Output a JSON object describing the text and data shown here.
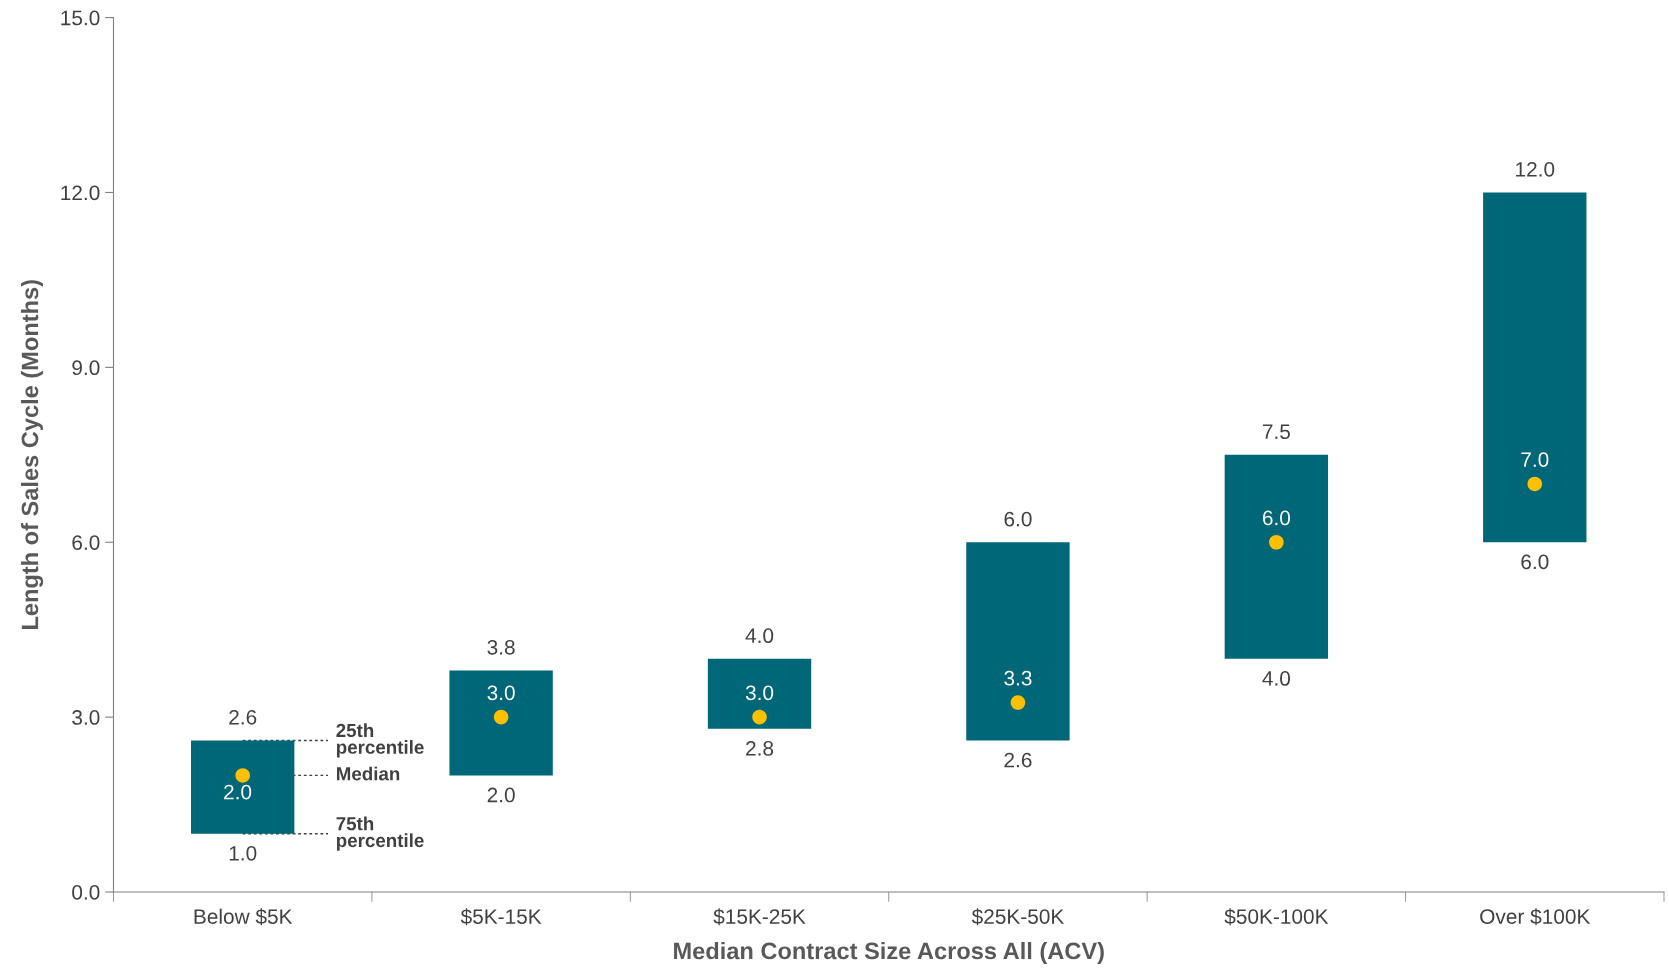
{
  "chart_data": {
    "type": "bar",
    "xlabel": "Median Contract Size Across All (ACV)",
    "ylabel": "Length of Sales Cycle (Months)",
    "categories": [
      "Below $5K",
      "$5K-15K",
      "$15K-25K",
      "$25K-50K",
      "$50K-100K",
      "Over $100K"
    ],
    "series": [
      {
        "color": "#006778",
        "base": [
          1.0,
          2.0,
          2.8,
          2.6,
          4.0,
          6.0
        ],
        "values": [
          1.6,
          1.8,
          1.2,
          3.4,
          3.5,
          6.0
        ]
      },
      {
        "type": "scatter",
        "color": "#ffc000",
        "x": [
          "Below $5K",
          "$5K-15K",
          "$15K-25K",
          "$25K-50K",
          "$50K-100K",
          "Over $100K"
        ],
        "values": [
          2.0,
          3.0,
          3.0,
          3.25,
          6.0,
          7.0
        ],
        "value_labels": [
          "2.0",
          "3.0",
          "3.0",
          "3.3",
          "6.0",
          "7.0"
        ]
      }
    ],
    "marker": "circle",
    "ylim": [
      0,
      15
    ],
    "yticks": [
      {
        "value": 0,
        "label": "0.0"
      },
      {
        "value": 3,
        "label": "3.0"
      },
      {
        "value": 6,
        "label": "6.0"
      },
      {
        "value": 9,
        "label": "9.0"
      },
      {
        "value": 12,
        "label": "12.0"
      },
      {
        "value": 15,
        "label": "15.0"
      }
    ],
    "grid": false,
    "legend": false,
    "annotations": [
      {
        "text": "2.6",
        "x": "Below $5K",
        "y": 2.6
      },
      {
        "text": "3.8",
        "x": "$5K-15K",
        "y": 3.8
      },
      {
        "text": "4.0",
        "x": "$15K-25K",
        "y": 4.0
      },
      {
        "text": "6.0",
        "x": "$25K-50K",
        "y": 6.0
      },
      {
        "text": "7.5",
        "x": "$50K-100K",
        "y": 7.5
      },
      {
        "text": "12.0",
        "x": "Over $100K",
        "y": 12.0
      },
      {
        "text": "1.0",
        "x": "Below $5K",
        "y": 1.0
      },
      {
        "text": "2.0",
        "x": "$5K-15K",
        "y": 2.0
      },
      {
        "text": "2.8",
        "x": "$15K-25K",
        "y": 2.8
      },
      {
        "text": "2.6",
        "x": "$25K-50K",
        "y": 2.6
      },
      {
        "text": "4.0",
        "x": "$50K-100K",
        "y": 4.0
      },
      {
        "text": "6.0",
        "x": "Over $100K",
        "y": 6.0
      },
      {
        "text": "25th\npercentile",
        "x": "Below $5K",
        "y": 2.6
      },
      {
        "text": "Median",
        "x": "Below $5K",
        "y": 2.0
      },
      {
        "text": "75th\npercentile",
        "x": "Below $5K",
        "y": 1.0
      }
    ]
  }
}
